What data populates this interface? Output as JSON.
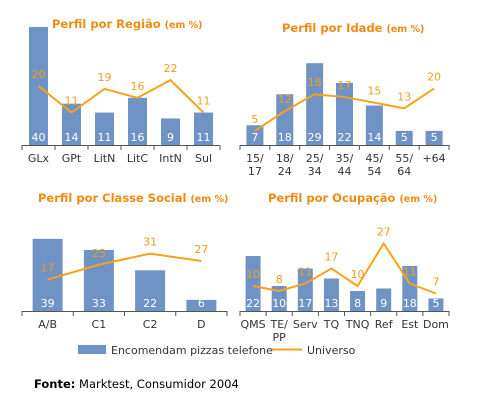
{
  "chart_data": [
    {
      "type": "bar+line",
      "title": "Perfil por Região",
      "unit": "(em %)",
      "categories": [
        "GLx",
        "GPt",
        "LitN",
        "LitC",
        "IntN",
        "Sul"
      ],
      "series": [
        {
          "name": "Encomendam pizzas telefone",
          "kind": "bar",
          "values": [
            40,
            14,
            11,
            16,
            9,
            11
          ]
        },
        {
          "name": "Universo",
          "kind": "line",
          "values": [
            20,
            11,
            19,
            16,
            22,
            11
          ]
        }
      ]
    },
    {
      "type": "bar+line",
      "title": "Perfil por Idade",
      "unit": "(em %)",
      "categories": [
        [
          "15/",
          "17"
        ],
        [
          "18/",
          "24"
        ],
        [
          "25/",
          "34"
        ],
        [
          "35/",
          "44"
        ],
        [
          "45/",
          "54"
        ],
        [
          "55/",
          "64"
        ],
        [
          "+64"
        ]
      ],
      "series": [
        {
          "name": "Encomendam pizzas telefone",
          "kind": "bar",
          "values": [
            7,
            18,
            29,
            22,
            14,
            5,
            5
          ]
        },
        {
          "name": "Universo",
          "kind": "line",
          "values": [
            5,
            12,
            18,
            17,
            15,
            13,
            20
          ]
        }
      ]
    },
    {
      "type": "bar+line",
      "title": "Perfil por Classe Social",
      "unit": "(em %)",
      "categories": [
        "A/B",
        "C1",
        "C2",
        "D"
      ],
      "series": [
        {
          "name": "Encomendam pizzas telefone",
          "kind": "bar",
          "values": [
            39,
            33,
            22,
            6
          ]
        },
        {
          "name": "Universo",
          "kind": "line",
          "values": [
            17,
            25,
            31,
            27
          ]
        }
      ]
    },
    {
      "type": "bar+line",
      "title": "Perfil por Ocupação",
      "unit": "(em %)",
      "categories": [
        "QMS",
        [
          "TE/",
          "PP"
        ],
        "Serv",
        "TQ",
        "TNQ",
        "Ref",
        "Est",
        "Dom"
      ],
      "series": [
        {
          "name": "Encomendam pizzas telefone",
          "kind": "bar",
          "values": [
            22,
            10,
            17,
            13,
            8,
            9,
            18,
            5
          ]
        },
        {
          "name": "Universo",
          "kind": "line",
          "values": [
            10,
            8,
            11,
            17,
            10,
            27,
            11,
            7
          ]
        }
      ]
    }
  ],
  "legend": {
    "bar_label": "Encomendam pizzas telefone",
    "line_label": "Universo"
  },
  "source": {
    "label": "Fonte:",
    "text": " Marktest, Consumidor 2004"
  },
  "colors": {
    "bar": "#6f93c4",
    "line": "#f7a21b",
    "title": "#f08a12",
    "line_label": "#f0a01e"
  }
}
